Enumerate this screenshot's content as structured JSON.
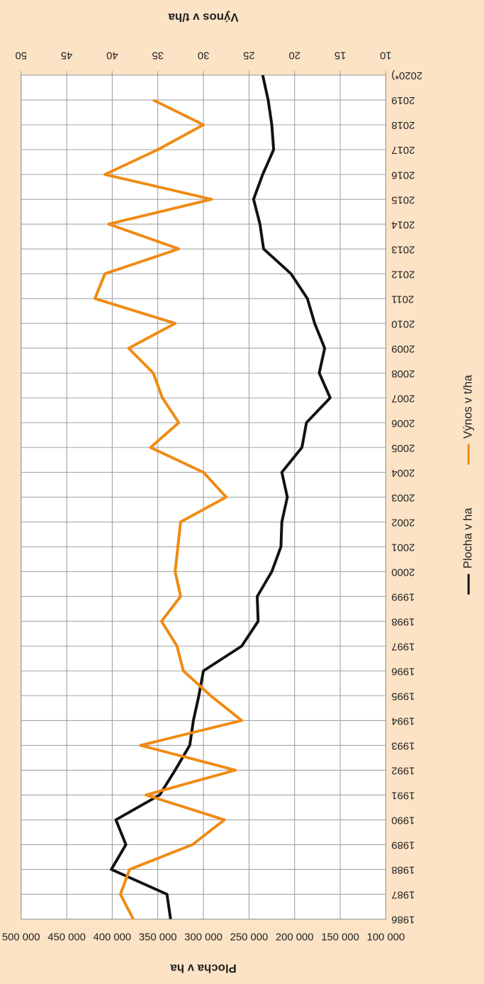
{
  "chart_data": {
    "type": "line",
    "y_title": "Plocha v ha",
    "y2_title": "Výnos v t/ha",
    "categories": [
      "1986",
      "1987",
      "1988",
      "1989",
      "1990",
      "1991",
      "1992",
      "1993",
      "1994",
      "1995",
      "1996",
      "1997",
      "1998",
      "1999",
      "2000",
      "2001",
      "2002",
      "2003",
      "2004",
      "2005",
      "2006",
      "2007",
      "2008",
      "2009",
      "2010",
      "2011",
      "2012",
      "2013",
      "2014",
      "2015",
      "2016",
      "2017",
      "2018",
      "2019",
      "2020*)"
    ],
    "series": [
      {
        "name": "Plocha v ha",
        "color": "#111111",
        "values": [
          336000,
          340000,
          401000,
          385000,
          396000,
          348000,
          331000,
          315000,
          311000,
          305000,
          300000,
          258000,
          240000,
          241000,
          225000,
          215000,
          214000,
          208000,
          214000,
          192000,
          187000,
          161000,
          173000,
          167000,
          178000,
          186000,
          204000,
          234000,
          238000,
          245000,
          235000,
          223000,
          225000,
          229000,
          235000
        ]
      },
      {
        "name": "Výnos v t/ha",
        "color": "#f08a12",
        "axis": "y2",
        "values": [
          37.7,
          39.1,
          38.1,
          31.2,
          27.7,
          36.3,
          26.5,
          36.9,
          25.8,
          29.2,
          32.2,
          32.9,
          34.6,
          32.5,
          33.1,
          32.8,
          32.5,
          27.5,
          30.0,
          35.8,
          32.7,
          34.5,
          35.5,
          38.2,
          33.1,
          41.9,
          40.8,
          32.7,
          40.4,
          29.1,
          40.8,
          35.0,
          30.0,
          35.5,
          null
        ]
      }
    ],
    "ylim": [
      100000,
      500000
    ],
    "yticks": [
      {
        "value": 100000,
        "label": "100 000"
      },
      {
        "value": 150000,
        "label": "150 000"
      },
      {
        "value": 200000,
        "label": "200 000"
      },
      {
        "value": 250000,
        "label": "250 000"
      },
      {
        "value": 300000,
        "label": "300 000"
      },
      {
        "value": 350000,
        "label": "350 000"
      },
      {
        "value": 400000,
        "label": "400 000"
      },
      {
        "value": 450000,
        "label": "450 000"
      },
      {
        "value": 500000,
        "label": "500 000"
      }
    ],
    "y2lim": [
      10,
      50
    ],
    "y2ticks": [
      10,
      15,
      20,
      25,
      30,
      35,
      40,
      45,
      50
    ],
    "grid": true
  }
}
